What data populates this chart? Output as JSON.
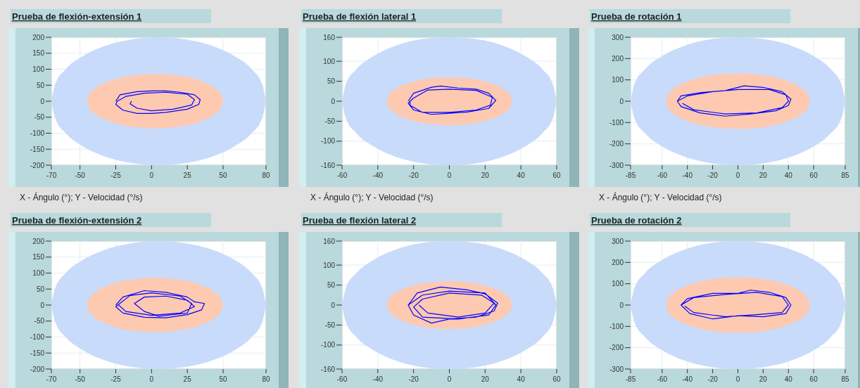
{
  "chart_data": [
    {
      "type": "line",
      "title": "Prueba de flexión-extensión 1",
      "xlabel": "X - Ángulo (°); Y - Velocidad (°/s)",
      "xlim": [
        -70,
        80
      ],
      "xticks": [
        -70,
        -50,
        -25,
        0,
        25,
        50,
        80
      ],
      "ylim": [
        -200,
        200
      ],
      "yticks": [
        -200,
        -150,
        -100,
        -50,
        0,
        50,
        100,
        150,
        200
      ],
      "grid": true,
      "series": [
        {
          "type": "area",
          "color": "#c9dbfb",
          "x": [
            -70,
            -67.4,
            -60,
            -48,
            -32.5,
            -14.4,
            5,
            24.4,
            42.5,
            58,
            70,
            77.4,
            80
          ],
          "values": [
            0,
            52,
            100,
            141,
            173,
            193,
            200,
            193,
            173,
            141,
            100,
            52,
            0
          ]
        },
        {
          "type": "area",
          "color": "#c9dbfb",
          "x": [
            -70,
            -67.4,
            -60,
            -48,
            -32.5,
            -14.4,
            5,
            24.4,
            42.5,
            58,
            70,
            77.4,
            80
          ],
          "values": [
            0,
            -52,
            -100,
            -141,
            -173,
            -193,
            -200,
            -193,
            -173,
            -141,
            -100,
            -52,
            0
          ]
        },
        {
          "type": "area",
          "color": "#fdc9b0",
          "x": [
            -45,
            -43.4,
            -38.6,
            -31.1,
            -21.3,
            -9.8,
            2.5,
            14.8,
            26.3,
            36.1,
            43.6,
            48.4,
            50
          ],
          "values": [
            0,
            22,
            42,
            60,
            74,
            82,
            85,
            82,
            74,
            60,
            42,
            22,
            0
          ]
        },
        {
          "type": "area",
          "color": "#fdc9b0",
          "x": [
            -45,
            -43.4,
            -38.6,
            -31.1,
            -21.3,
            -9.8,
            2.5,
            14.8,
            26.3,
            36.1,
            43.6,
            48.4,
            50
          ],
          "values": [
            0,
            -22,
            -42,
            -60,
            -74,
            -82,
            -85,
            -82,
            -74,
            -60,
            -42,
            -22,
            0
          ]
        },
        {
          "type": "line",
          "color": "#0000ff",
          "x": [
            -25,
            -22,
            -10,
            0,
            10,
            20,
            30,
            34,
            33,
            25,
            10,
            0,
            -10,
            -20,
            -25,
            -24,
            -18,
            -5,
            10,
            25,
            30,
            28,
            15,
            0,
            -10,
            -15,
            -14
          ],
          "values": [
            0,
            20,
            30,
            32,
            32,
            28,
            20,
            5,
            -10,
            -25,
            -35,
            -38,
            -38,
            -28,
            -10,
            0,
            15,
            25,
            28,
            22,
            5,
            -12,
            -25,
            -30,
            -22,
            -8,
            0
          ]
        }
      ]
    },
    {
      "type": "line",
      "title": "Prueba de flexión lateral 1",
      "xlabel": "X - Ángulo (°); Y - Velocidad (°/s)",
      "xlim": [
        -60,
        60
      ],
      "xticks": [
        -60,
        -40,
        -20,
        0,
        20,
        40,
        60
      ],
      "ylim": [
        -160,
        160
      ],
      "yticks": [
        -160,
        -100,
        -50,
        0,
        50,
        100,
        160
      ],
      "grid": true,
      "series": [
        {
          "type": "area",
          "color": "#c9dbfb",
          "x": [
            -60,
            -58,
            -52,
            -42.4,
            -30,
            -15.5,
            0,
            15.5,
            30,
            42.4,
            52,
            58,
            60
          ],
          "values": [
            0,
            41,
            80,
            113,
            139,
            155,
            160,
            155,
            139,
            113,
            80,
            41,
            0
          ]
        },
        {
          "type": "area",
          "color": "#c9dbfb",
          "x": [
            -60,
            -58,
            -52,
            -42.4,
            -30,
            -15.5,
            0,
            15.5,
            30,
            42.4,
            52,
            58,
            60
          ],
          "values": [
            0,
            -41,
            -80,
            -113,
            -139,
            -155,
            -160,
            -155,
            -139,
            -113,
            -80,
            -41,
            0
          ]
        },
        {
          "type": "area",
          "color": "#fdc9b0",
          "x": [
            -35,
            -33.8,
            -30.3,
            -24.7,
            -17.5,
            -9.1,
            0,
            9.1,
            17.5,
            24.7,
            30.3,
            33.8,
            35
          ],
          "values": [
            0,
            16,
            30,
            42,
            52,
            58,
            60,
            58,
            52,
            42,
            30,
            16,
            0
          ]
        },
        {
          "type": "area",
          "color": "#fdc9b0",
          "x": [
            -35,
            -33.8,
            -30.3,
            -24.7,
            -17.5,
            -9.1,
            0,
            9.1,
            17.5,
            24.7,
            30.3,
            33.8,
            35
          ],
          "values": [
            0,
            -16,
            -30,
            -42,
            -52,
            -58,
            -60,
            -58,
            -52,
            -42,
            -30,
            -16,
            0
          ]
        },
        {
          "type": "line",
          "color": "#0000ff",
          "x": [
            -23,
            -20,
            -10,
            -5,
            5,
            15,
            22,
            26,
            22,
            10,
            0,
            -10,
            -20,
            -23,
            -20,
            -12,
            0,
            15,
            24,
            23,
            15,
            0,
            -15,
            -22,
            -22
          ],
          "values": [
            0,
            20,
            35,
            38,
            33,
            30,
            20,
            2,
            -18,
            -27,
            -30,
            -33,
            -22,
            -5,
            8,
            28,
            30,
            27,
            10,
            -10,
            -22,
            -28,
            -28,
            -10,
            0
          ]
        }
      ]
    },
    {
      "type": "line",
      "title": "Prueba de rotación 1",
      "xlabel": "X - Ángulo (°); Y - Velocidad (°/s)",
      "xlim": [
        -85,
        85
      ],
      "xticks": [
        -85,
        -60,
        -40,
        -20,
        0,
        20,
        40,
        60,
        85
      ],
      "ylim": [
        -300,
        300
      ],
      "yticks": [
        -300,
        -200,
        -100,
        0,
        100,
        200,
        300
      ],
      "grid": true,
      "series": [
        {
          "type": "area",
          "color": "#c9dbfb",
          "x": [
            -85,
            -82.1,
            -73.6,
            -60.1,
            -42.5,
            -22,
            0,
            22,
            42.5,
            60.1,
            73.6,
            82.1,
            85
          ],
          "values": [
            0,
            78,
            150,
            212,
            260,
            290,
            300,
            290,
            260,
            212,
            150,
            78,
            0
          ]
        },
        {
          "type": "area",
          "color": "#c9dbfb",
          "x": [
            -85,
            -82.1,
            -73.6,
            -60.1,
            -42.5,
            -22,
            0,
            22,
            42.5,
            60.1,
            73.6,
            82.1,
            85
          ],
          "values": [
            0,
            -78,
            -150,
            -212,
            -260,
            -290,
            -300,
            -290,
            -260,
            -212,
            -150,
            -78,
            0
          ]
        },
        {
          "type": "area",
          "color": "#fdc9b0",
          "x": [
            -57,
            -55.1,
            -49.4,
            -40.3,
            -28.5,
            -14.8,
            0,
            14.8,
            28.5,
            40.3,
            49.4,
            55.1,
            57
          ],
          "values": [
            0,
            34,
            65,
            92,
            113,
            126,
            130,
            126,
            113,
            92,
            65,
            34,
            0
          ]
        },
        {
          "type": "area",
          "color": "#fdc9b0",
          "x": [
            -57,
            -55.1,
            -49.4,
            -40.3,
            -28.5,
            -14.8,
            0,
            14.8,
            28.5,
            40.3,
            49.4,
            55.1,
            57
          ],
          "values": [
            0,
            -34,
            -65,
            -92,
            -113,
            -126,
            -130,
            -126,
            -113,
            -92,
            -65,
            -34,
            0
          ]
        },
        {
          "type": "line",
          "color": "#0000ff",
          "x": [
            -48,
            -45,
            -30,
            -10,
            5,
            20,
            35,
            42,
            40,
            30,
            10,
            -10,
            -30,
            -45,
            -48,
            -40,
            -20,
            0,
            25,
            38,
            40,
            35,
            15,
            -10,
            -35,
            -44
          ],
          "values": [
            0,
            25,
            40,
            50,
            72,
            65,
            45,
            10,
            -20,
            -45,
            -60,
            -70,
            -55,
            -25,
            0,
            25,
            45,
            55,
            55,
            30,
            0,
            -30,
            -55,
            -60,
            -40,
            -10
          ]
        }
      ]
    },
    {
      "type": "line",
      "title": "Prueba de flexión-extensión 2",
      "xlim": [
        -70,
        80
      ],
      "xticks": [
        -70,
        -50,
        -25,
        0,
        25,
        50,
        80
      ],
      "ylim": [
        -200,
        200
      ],
      "yticks": [
        -200,
        -150,
        -100,
        -50,
        0,
        50,
        100,
        150,
        200
      ],
      "grid": true,
      "series": [
        {
          "type": "area",
          "color": "#c9dbfb",
          "x": [
            -70,
            -67.4,
            -60,
            -48,
            -32.5,
            -14.4,
            5,
            24.4,
            42.5,
            58,
            70,
            77.4,
            80
          ],
          "values": [
            0,
            52,
            100,
            141,
            173,
            193,
            200,
            193,
            173,
            141,
            100,
            52,
            0
          ]
        },
        {
          "type": "area",
          "color": "#c9dbfb",
          "x": [
            -70,
            -67.4,
            -60,
            -48,
            -32.5,
            -14.4,
            5,
            24.4,
            42.5,
            58,
            70,
            77.4,
            80
          ],
          "values": [
            0,
            -52,
            -100,
            -141,
            -173,
            -193,
            -200,
            -193,
            -173,
            -141,
            -100,
            -52,
            0
          ]
        },
        {
          "type": "area",
          "color": "#fdc9b0",
          "x": [
            -45,
            -43.4,
            -38.6,
            -31.1,
            -21.3,
            -9.8,
            2.5,
            14.8,
            26.3,
            36.1,
            43.6,
            48.4,
            50
          ],
          "values": [
            0,
            22,
            42,
            60,
            74,
            82,
            85,
            82,
            74,
            60,
            42,
            22,
            0
          ]
        },
        {
          "type": "area",
          "color": "#fdc9b0",
          "x": [
            -45,
            -43.4,
            -38.6,
            -31.1,
            -21.3,
            -9.8,
            2.5,
            14.8,
            26.3,
            36.1,
            43.6,
            48.4,
            50
          ],
          "values": [
            0,
            -22,
            -42,
            -60,
            -74,
            -82,
            -85,
            -82,
            -74,
            -60,
            -42,
            -22,
            0
          ]
        },
        {
          "type": "line",
          "color": "#0000ff",
          "x": [
            -25,
            -20,
            -5,
            10,
            25,
            30,
            37,
            35,
            25,
            10,
            -5,
            -20,
            -25,
            -15,
            0,
            20,
            28,
            25,
            5,
            -5,
            -12,
            -5,
            10,
            25,
            30,
            20,
            0,
            -18,
            -23
          ],
          "values": [
            0,
            25,
            45,
            40,
            25,
            10,
            5,
            -15,
            -30,
            -40,
            -38,
            -25,
            -5,
            30,
            38,
            28,
            5,
            -25,
            -35,
            -20,
            5,
            25,
            28,
            15,
            -5,
            -25,
            -32,
            -20,
            0
          ]
        }
      ]
    },
    {
      "type": "line",
      "title": "Prueba de flexión lateral 2",
      "xlim": [
        -60,
        60
      ],
      "xticks": [
        -60,
        -40,
        -20,
        0,
        20,
        40,
        60
      ],
      "ylim": [
        -160,
        160
      ],
      "yticks": [
        -160,
        -100,
        -50,
        0,
        50,
        100,
        160
      ],
      "grid": true,
      "series": [
        {
          "type": "area",
          "color": "#c9dbfb",
          "x": [
            -60,
            -58,
            -52,
            -42.4,
            -30,
            -15.5,
            0,
            15.5,
            30,
            42.4,
            52,
            58,
            60
          ],
          "values": [
            0,
            41,
            80,
            113,
            139,
            155,
            160,
            155,
            139,
            113,
            80,
            41,
            0
          ]
        },
        {
          "type": "area",
          "color": "#c9dbfb",
          "x": [
            -60,
            -58,
            -52,
            -42.4,
            -30,
            -15.5,
            0,
            15.5,
            30,
            42.4,
            52,
            58,
            60
          ],
          "values": [
            0,
            -41,
            -80,
            -113,
            -139,
            -155,
            -160,
            -155,
            -139,
            -113,
            -80,
            -41,
            0
          ]
        },
        {
          "type": "area",
          "color": "#fdc9b0",
          "x": [
            -35,
            -33.8,
            -30.3,
            -24.7,
            -17.5,
            -9.1,
            0,
            9.1,
            17.5,
            24.7,
            30.3,
            33.8,
            35
          ],
          "values": [
            0,
            16,
            30,
            42,
            52,
            58,
            60,
            58,
            52,
            42,
            30,
            16,
            0
          ]
        },
        {
          "type": "area",
          "color": "#fdc9b0",
          "x": [
            -35,
            -33.8,
            -30.3,
            -24.7,
            -17.5,
            -9.1,
            0,
            9.1,
            17.5,
            24.7,
            30.3,
            33.8,
            35
          ],
          "values": [
            0,
            -16,
            -30,
            -42,
            -52,
            -58,
            -60,
            -58,
            -52,
            -42,
            -30,
            -16,
            0
          ]
        },
        {
          "type": "line",
          "color": "#0000ff",
          "x": [
            -23,
            -18,
            -5,
            10,
            20,
            27,
            25,
            15,
            0,
            -10,
            -20,
            -23,
            -15,
            0,
            20,
            26,
            22,
            5,
            -15,
            -20,
            -15,
            0,
            18,
            25,
            20,
            5,
            -12,
            -17
          ],
          "values": [
            0,
            30,
            45,
            38,
            28,
            5,
            -15,
            -30,
            -35,
            -45,
            -25,
            0,
            25,
            35,
            30,
            0,
            -25,
            -35,
            -30,
            -5,
            15,
            30,
            25,
            5,
            -20,
            -30,
            -20,
            0
          ]
        }
      ]
    },
    {
      "type": "line",
      "title": "Prueba de rotación 2",
      "xlim": [
        -85,
        85
      ],
      "xticks": [
        -85,
        -60,
        -40,
        -20,
        0,
        20,
        40,
        60,
        85
      ],
      "ylim": [
        -300,
        300
      ],
      "yticks": [
        -300,
        -200,
        -100,
        0,
        100,
        200,
        300
      ],
      "grid": true,
      "series": [
        {
          "type": "area",
          "color": "#c9dbfb",
          "x": [
            -85,
            -82.1,
            -73.6,
            -60.1,
            -42.5,
            -22,
            0,
            22,
            42.5,
            60.1,
            73.6,
            82.1,
            85
          ],
          "values": [
            0,
            78,
            150,
            212,
            260,
            290,
            300,
            290,
            260,
            212,
            150,
            78,
            0
          ]
        },
        {
          "type": "area",
          "color": "#c9dbfb",
          "x": [
            -85,
            -82.1,
            -73.6,
            -60.1,
            -42.5,
            -22,
            0,
            22,
            42.5,
            60.1,
            73.6,
            82.1,
            85
          ],
          "values": [
            0,
            -78,
            -150,
            -212,
            -260,
            -290,
            -300,
            -290,
            -260,
            -212,
            -150,
            -78,
            0
          ]
        },
        {
          "type": "area",
          "color": "#fdc9b0",
          "x": [
            -57,
            -55.1,
            -49.4,
            -40.3,
            -28.5,
            -14.8,
            0,
            14.8,
            28.5,
            40.3,
            49.4,
            55.1,
            57
          ],
          "values": [
            0,
            34,
            65,
            92,
            113,
            126,
            130,
            126,
            113,
            92,
            65,
            34,
            0
          ]
        },
        {
          "type": "area",
          "color": "#fdc9b0",
          "x": [
            -57,
            -55.1,
            -49.4,
            -40.3,
            -28.5,
            -14.8,
            0,
            14.8,
            28.5,
            40.3,
            49.4,
            55.1,
            57
          ],
          "values": [
            0,
            -34,
            -65,
            -92,
            -113,
            -126,
            -130,
            -126,
            -113,
            -92,
            -65,
            -34,
            0
          ]
        },
        {
          "type": "line",
          "color": "#0000ff",
          "x": [
            -45,
            -40,
            -20,
            0,
            10,
            25,
            38,
            42,
            38,
            20,
            0,
            -20,
            -38,
            -45,
            -35,
            -10,
            15,
            35,
            40,
            35,
            15,
            -10,
            -35,
            -42
          ],
          "values": [
            0,
            30,
            55,
            55,
            70,
            60,
            35,
            0,
            -40,
            -55,
            -50,
            -65,
            -40,
            0,
            35,
            50,
            60,
            40,
            0,
            -35,
            -45,
            -55,
            -35,
            -5
          ]
        }
      ]
    }
  ]
}
